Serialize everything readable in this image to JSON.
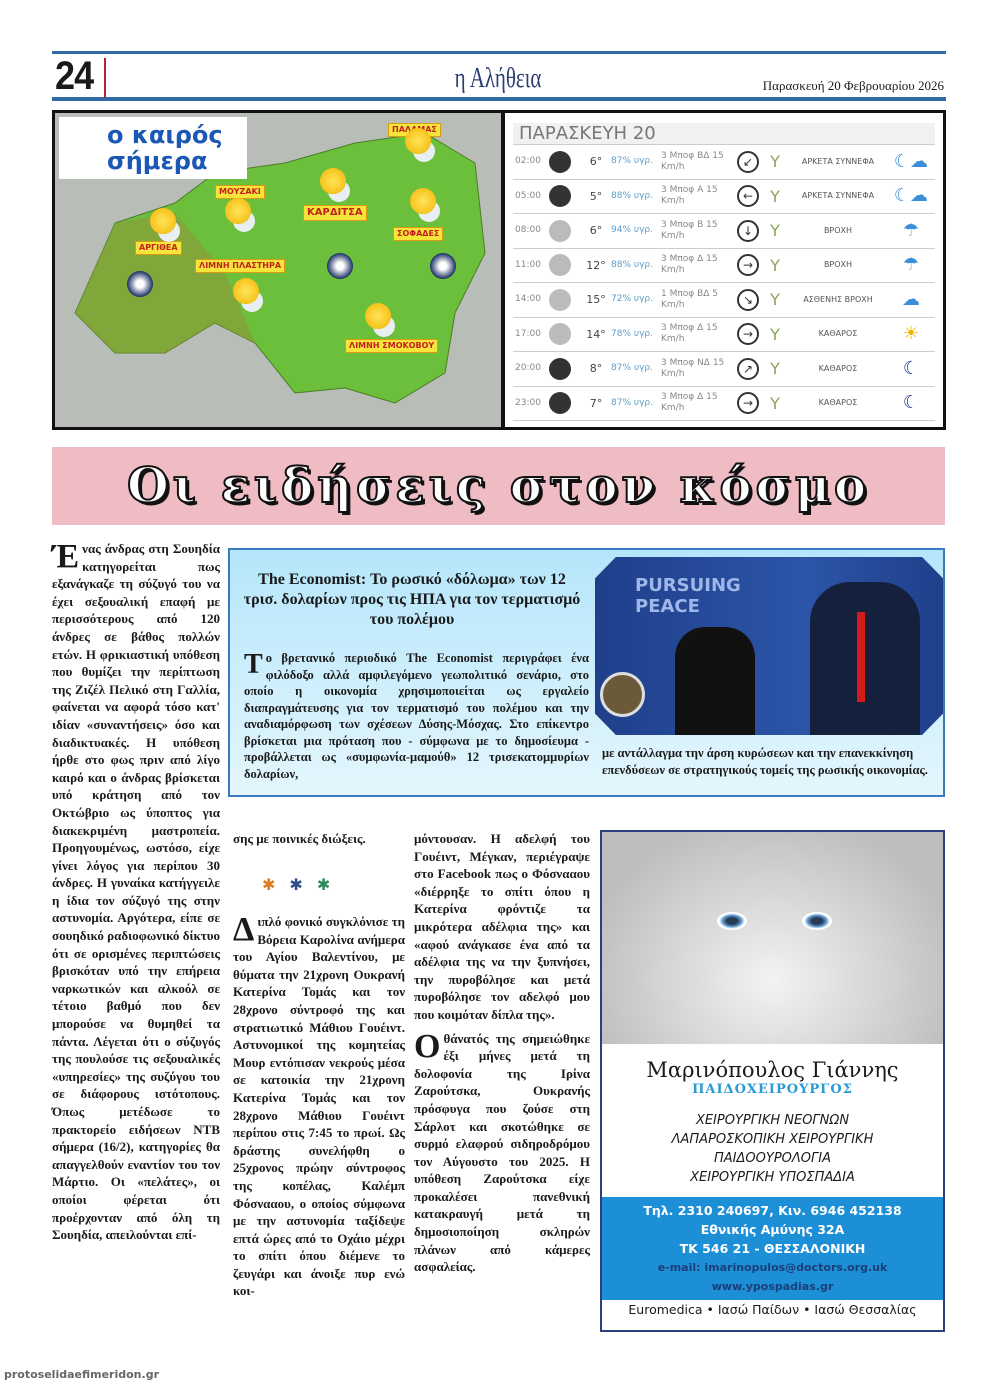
{
  "header": {
    "page_number": "24",
    "masthead": "η Αλήθεια",
    "date": "Παρασκευή 20 Φεβρουαρίου 2026"
  },
  "weather": {
    "logo": "ο καιρός σήμερα",
    "towns": [
      "ΠΑΛΑΜΑΣ",
      "ΜΟΥΖΑΚΙ",
      "ΚΑΡΔΙΤΣΑ",
      "ΣΟΦΑΔΕΣ",
      "ΑΡΓΙΘΕΑ",
      "ΛΙΜΝΗ ΠΛΑΣΤΗΡΑ",
      "ΛΙΜΝΗ ΣΜΟΚΟΒΟΥ"
    ],
    "table_title": "ΠΑΡΑΣΚΕΥΗ 20",
    "rows": [
      {
        "time": "02:00",
        "temp": "6°",
        "hum": "87% υγρ.",
        "wind": "3 Μποφ ΒΔ 15 Km/h",
        "dir": "↙",
        "cond": "ΑΡΚΕΤΑ ΣΥΝΝΕΦΑ",
        "icon": "night-cloud-icon",
        "night": true
      },
      {
        "time": "05:00",
        "temp": "5°",
        "hum": "88% υγρ.",
        "wind": "3 Μποφ Α 15 Km/h",
        "dir": "←",
        "cond": "ΑΡΚΕΤΑ ΣΥΝΝΕΦΑ",
        "icon": "night-cloud-icon",
        "night": true
      },
      {
        "time": "08:00",
        "temp": "6°",
        "hum": "94% υγρ.",
        "wind": "3 Μποφ Β 15 Km/h",
        "dir": "↓",
        "cond": "ΒΡΟΧΗ",
        "icon": "rain-icon",
        "night": false
      },
      {
        "time": "11:00",
        "temp": "12°",
        "hum": "88% υγρ.",
        "wind": "3 Μποφ Δ 15 Km/h",
        "dir": "→",
        "cond": "ΒΡΟΧΗ",
        "icon": "rain-icon",
        "night": false
      },
      {
        "time": "14:00",
        "temp": "15°",
        "hum": "72% υγρ.",
        "wind": "1 Μποφ ΒΔ 5 Km/h",
        "dir": "↘",
        "cond": "ΑΣΘΕΝΗΣ ΒΡΟΧΗ",
        "icon": "light-rain-icon",
        "night": false
      },
      {
        "time": "17:00",
        "temp": "14°",
        "hum": "78% υγρ.",
        "wind": "3 Μποφ Δ 15 Km/h",
        "dir": "→",
        "cond": "ΚΑΘΑΡΟΣ",
        "icon": "sun-icon",
        "night": false
      },
      {
        "time": "20:00",
        "temp": "8°",
        "hum": "87% υγρ.",
        "wind": "3 Μποφ ΝΔ 15 Km/h",
        "dir": "↗",
        "cond": "ΚΑΘΑΡΟΣ",
        "icon": "moon-icon",
        "night": true
      },
      {
        "time": "23:00",
        "temp": "7°",
        "hum": "87% υγρ.",
        "wind": "3 Μποφ Δ 15 Km/h",
        "dir": "→",
        "cond": "ΚΑΘΑΡΟΣ",
        "icon": "moon-icon",
        "night": true
      }
    ]
  },
  "banner": "Οι ειδήσεις στον κόσμο",
  "article1": {
    "drop": "Έ",
    "col1": "νας άνδρας στη Σουηδία κατηγορείται πως εξανάγκαζε τη σύζυγό του να έχει σεξουαλική επαφή με περισσότερους από 120 άνδρες σε βάθος πολλών ετών. Η φρικιαστική υπόθεση που θυμίζει την περίπτωση της Ζιζέλ Πελικό στη Γαλλία, φαίνεται να αφορά τόσο κατ' ιδίαν «συναντήσεις» όσο και διαδικτυακές. Η υπόθεση ήρθε στο φως πριν από λίγο καιρό και ο άνδρας βρίσκεται υπό κράτηση από τον Οκτώβριο ως ύποπτος για διακεκριμένη μαστροπεία. Προηγουμένως, ωστόσο, είχε γίνει λόγος για περίπου 30 άνδρες. Η γυναίκα κατήγγειλε η ίδια τον σύζυγό της στην αστυνομία. Αργότερα, είπε σε σουηδικό ραδιοφωνικό δίκτυο ότι σε ορισμένες περιπτώσεις βρισκόταν υπό την επήρεια ναρκωτικών και αλκοόλ σε τέτοιο βαθμό που δεν μπορούσε να θυμηθεί τα πάντα. Λέγεται ότι ο σύζυγός της πουλούσε τις σεξουαλικές «υπηρεσίες» της συζύγου του σε διάφορους ιστότοπους. Όπως μετέδωσε το πρακτορείο ειδήσεων ΝΤΒ σήμερα (16/2), κατηγορίες θα απαγγελθούν εναντίον του τον Μάρτιο. Οι «πελάτες», οι οποίοι φέρεται ότι προέρχονταν από όλη τη Σουηδία, απειλούνται επί-",
    "col2": "σης με ποινικές διώξεις."
  },
  "feature": {
    "title": "The Economist: Το ρωσικό «δόλωμα» των 12 τρισ. δολαρίων προς τις ΗΠΑ για τον τερματισμό του πολέμου",
    "drop": "Τ",
    "body": "ο βρετανικό περιοδικό The Economist περιγράφει ένα φιλόδοξο αλλά αμφιλεγόμενο γεωπολιτικό σενάριο, στο οποίο η οικονομία χρησιμοποιείται ως εργαλείο διαπραγμάτευσης για τον τερματισμό του πολέμου και την αναδιαμόρφωση των σχέσεων Δύσης-Μόσχας. Στο επίκεντρο βρίσκεται μια πρόταση που - σύμφωνα με το δημοσίευμα - προβάλλεται ως «συμφωνία-μαμούθ» 12 τρισεκατομμυρίων δολαρίων,",
    "caption": "με αντάλλαγμα την άρση κυρώσεων και την επανεκκίνηση επενδύσεων σε στρατηγικούς τομείς της ρωσικής οικονομίας.",
    "photo_text": "PURSUING PEACE"
  },
  "separator": "* * *",
  "article2": {
    "drop": "Δ",
    "col2": "ιπλό φονικό συγκλόνισε τη Βόρεια Καρολίνα ανήμερα του Αγίου Βαλεντίνου, με θύματα την 21χρονη Ουκρανή Κατερίνα Τομάς και τον 28χρονο σύντροφό της και στρατιωτικό Μάθιου Γουέιντ. Αστυνομικοί της κομητείας Μουρ εντόπισαν νεκρούς μέσα σε κατοικία την 21χρονη Κατερίνα Τομάς και τον 28χρονο Μάθιου Γουέιντ περίπου στις 7:45 το πρωί. Ως δράστης συνελήφθη ο 25χρονος πρώην σύντροφος της κοπέλας, Καλέμπ Φόσνααου, ο οποίος σύμφωνα με την αστυνομία ταξίδεψε επτά ώρες από το Οχάιο μέχρι το σπίτι όπου διέμενε το ζευγάρι και άνοιξε πυρ ενώ κοι-",
    "col3": "μόντουσαν. Η αδελφή του Γουέιντ, Μέγκαν, περιέγραψε στο Facebook πως ο Φόσνααου «διέρρηξε το σπίτι όπου η Κατερίνα φρόντιζε τα μικρότερα αδέλφια της» και «αφού ανάγκασε ένα από τα αδέλφια της να την ξυπνήσει, την πυροβόλησε και μετά πυροβόλησε τον αδελφό μου που κοιμόταν δίπλα της».",
    "drop2": "Ο",
    "col3b": "θάνατός της σημειώθηκε έξι μήνες μετά τη δολοφονία της Ιρίνα Ζαρούτσκα, Ουκρανής πρόσφυγα που ζούσε στη Σάρλοτ και σκοτώθηκε σε συρμό ελαφρού σιδηροδρόμου τον Αύγουστο του 2025. Η υπόθεση Ζαρούτσκα είχε προκαλέσει πανεθνική κατακραυγή μετά τη δημοσιοποίηση σκληρών πλάνων από κάμερες ασφαλείας."
  },
  "ad": {
    "name": "Μαρινόπουλος Γιάννης",
    "title": "ΠΑΙΔΟΧΕΙΡΟΥΡΓΟΣ",
    "specialties": [
      "ΧΕΙΡΟΥΡΓΙΚΗ ΝΕΟΓΝΩΝ",
      "ΛΑΠΑΡΟΣΚΟΠΙΚΗ ΧΕΙΡΟΥΡΓΙΚΗ",
      "ΠΑΙΔΟΟΥΡΟΛΟΓΙΑ",
      "ΧΕΙΡΟΥΡΓΙΚΗ ΥΠΟΣΠΑΔΙΑ"
    ],
    "phone": "Τηλ. 2310 240697, Κιν. 6946 452138",
    "address": "Εθνικής Αμύνης 32Α",
    "city": "ΤΚ 546 21 - ΘΕΣΣΑΛΟΝΙΚΗ",
    "email": "e-mail: imarinopulos@doctors.org.uk",
    "web": "www.ypospadias.gr",
    "footer": "Euromedica • Ιασώ Παίδων • Ιασώ Θεσσαλίας"
  },
  "watermark": "protoselidaefimeridon.gr"
}
